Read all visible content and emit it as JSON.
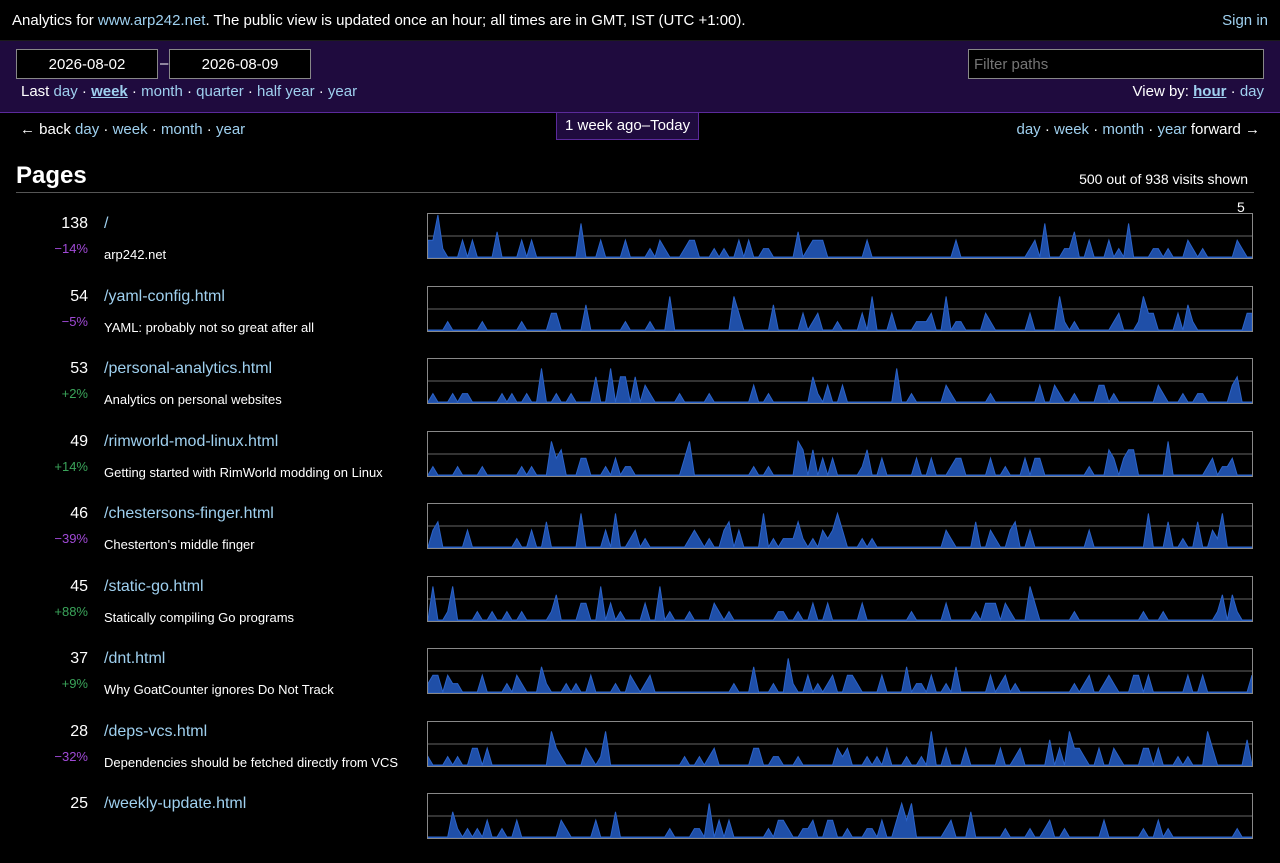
{
  "topbar": {
    "intro_prefix": "Analytics for ",
    "site_link": "www.arp242.net",
    "intro_suffix": ". The public view is updated once an hour; all times are in GMT, IST (UTC +1:00).",
    "sign_in": "Sign in"
  },
  "filter": {
    "date_start": "2026-08-02",
    "date_sep": "–",
    "date_end": "2026-08-09",
    "last_label": "Last",
    "periods": [
      "day",
      "week",
      "month",
      "quarter",
      "half year",
      "year"
    ],
    "current_period": "week",
    "filter_placeholder": "Filter paths",
    "view_by_label": "View by:",
    "view_by_options": [
      "hour",
      "day"
    ],
    "view_by_current": "hour"
  },
  "nav": {
    "back_label": "← back",
    "back_links": [
      "day",
      "week",
      "month",
      "year"
    ],
    "current_range": "1 week ago–Today",
    "forward_links": [
      "day",
      "week",
      "month",
      "year"
    ],
    "forward_label": "forward →"
  },
  "pages": {
    "heading": "Pages",
    "shown_text": "500 out of 938 visits shown",
    "chart_max": "5",
    "rows": [
      {
        "count": "138",
        "change": "−14%",
        "trend": "down",
        "path": "/",
        "title": "arp242.net"
      },
      {
        "count": "54",
        "change": "−5%",
        "trend": "down",
        "path": "/yaml-config.html",
        "title": "YAML: probably not so great after all"
      },
      {
        "count": "53",
        "change": "+2%",
        "trend": "up",
        "path": "/personal-analytics.html",
        "title": "Analytics on personal websites"
      },
      {
        "count": "49",
        "change": "+14%",
        "trend": "up",
        "path": "/rimworld-mod-linux.html",
        "title": "Getting started with RimWorld modding on Linux"
      },
      {
        "count": "46",
        "change": "−39%",
        "trend": "down",
        "path": "/chestersons-finger.html",
        "title": "Chesterton's middle finger"
      },
      {
        "count": "45",
        "change": "+88%",
        "trend": "up",
        "path": "/static-go.html",
        "title": "Statically compiling Go programs"
      },
      {
        "count": "37",
        "change": "+9%",
        "trend": "up",
        "path": "/dnt.html",
        "title": "Why GoatCounter ignores Do Not Track"
      },
      {
        "count": "28",
        "change": "−32%",
        "trend": "down",
        "path": "/deps-vcs.html",
        "title": "Dependencies should be fetched directly from VCS"
      },
      {
        "count": "25",
        "change": "",
        "trend": "down",
        "path": "/weekly-update.html",
        "title": ""
      }
    ]
  },
  "colors": {
    "background": "#000000",
    "link": "#9fd0ef",
    "filter_bar": "#1f0b3e",
    "chart_fill": "#1f4fa8",
    "trend_down": "#a04ad6",
    "trend_up": "#3aa45a"
  }
}
